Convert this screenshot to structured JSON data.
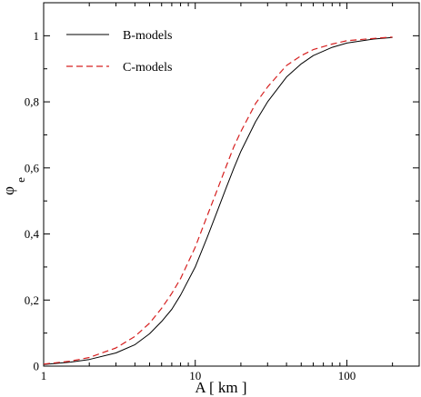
{
  "chart_data": {
    "type": "line",
    "title": "",
    "xlabel": "A [ km ]",
    "ylabel": "φ",
    "ylabel_sub": "e",
    "xscale": "log",
    "xlim": [
      1,
      300
    ],
    "ylim": [
      0,
      1.1
    ],
    "x_ticks": [
      1,
      10,
      100
    ],
    "x_tick_labels": [
      "1",
      "10",
      "100"
    ],
    "y_ticks": [
      0,
      0.2,
      0.4,
      0.6,
      0.8,
      1
    ],
    "y_tick_labels": [
      "0",
      "0,2",
      "0,4",
      "0,6",
      "0,8",
      "1"
    ],
    "grid": false,
    "legend_position": "top-left",
    "series": [
      {
        "name": "B-models",
        "color": "#000000",
        "dash": "solid",
        "x": [
          1,
          1.5,
          2,
          3,
          4,
          5,
          6,
          7,
          8,
          10,
          12,
          14,
          16,
          18,
          20,
          25,
          30,
          40,
          50,
          60,
          80,
          100,
          150,
          200
        ],
        "y": [
          0.005,
          0.012,
          0.02,
          0.04,
          0.065,
          0.098,
          0.135,
          0.172,
          0.215,
          0.3,
          0.39,
          0.47,
          0.54,
          0.6,
          0.65,
          0.74,
          0.8,
          0.875,
          0.915,
          0.94,
          0.965,
          0.978,
          0.99,
          0.995
        ]
      },
      {
        "name": "C-models",
        "color": "#d62020",
        "dash": "dashed",
        "x": [
          1,
          1.5,
          2,
          3,
          4,
          5,
          6,
          7,
          8,
          10,
          12,
          14,
          16,
          18,
          20,
          25,
          30,
          40,
          50,
          60,
          80,
          100,
          150,
          200
        ],
        "y": [
          0.006,
          0.015,
          0.026,
          0.055,
          0.09,
          0.13,
          0.175,
          0.22,
          0.265,
          0.36,
          0.455,
          0.535,
          0.605,
          0.665,
          0.71,
          0.795,
          0.845,
          0.91,
          0.94,
          0.958,
          0.975,
          0.985,
          0.992,
          0.996
        ]
      }
    ]
  }
}
